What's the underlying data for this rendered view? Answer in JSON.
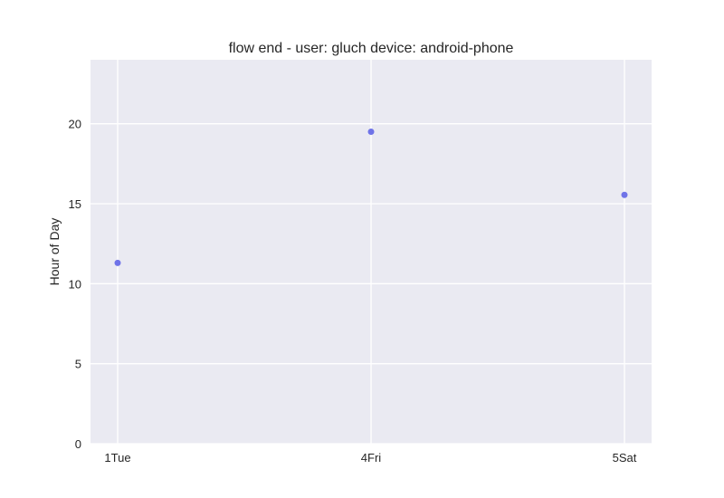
{
  "chart_data": {
    "type": "scatter",
    "title": "flow end - user: gluch device: android-phone",
    "xlabel": "",
    "ylabel": "Hour of Day",
    "x_categories": [
      "1Tue",
      "4Fri",
      "5Sat"
    ],
    "y_ticks": [
      "0",
      "5",
      "10",
      "15",
      "20"
    ],
    "ylim": [
      0,
      24
    ],
    "grid": true,
    "series": [
      {
        "points": [
          {
            "x": "1Tue",
            "y": 11.3
          },
          {
            "x": "4Fri",
            "y": 19.5
          },
          {
            "x": "5Sat",
            "y": 15.55
          }
        ]
      }
    ],
    "colors": {
      "background": "#eaeaf2",
      "grid": "#ffffff",
      "point": "#6f73e8"
    }
  }
}
